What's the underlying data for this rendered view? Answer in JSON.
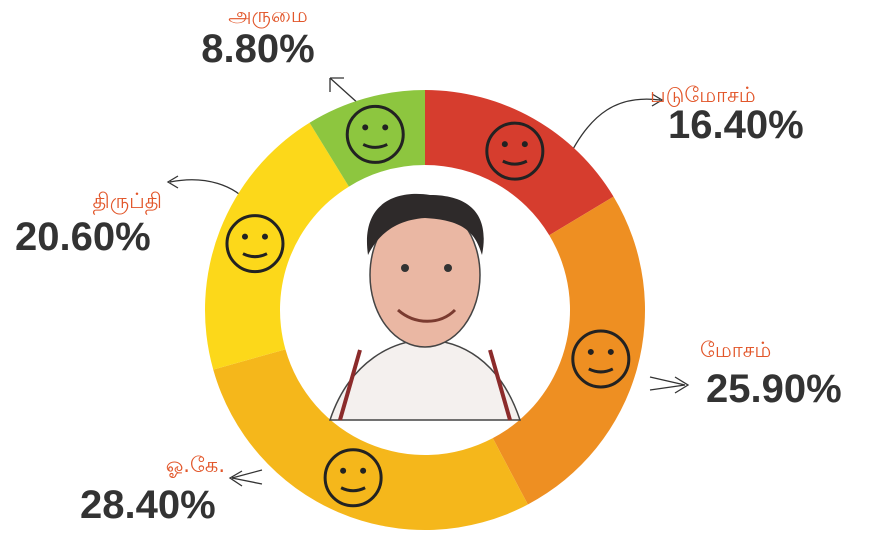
{
  "chart_data": {
    "type": "donut",
    "categories": [
      "படுமோசம்",
      "மோசம்",
      "ஓ.கே.",
      "திருப்தி",
      "அருமை"
    ],
    "values": [
      16.4,
      25.9,
      28.4,
      20.6,
      8.8
    ],
    "value_labels": [
      "16.40%",
      "25.90%",
      "28.40%",
      "20.60%",
      "8.80%"
    ],
    "colors": [
      "#d63d2e",
      "#ee8f22",
      "#f5b71b",
      "#fcd81a",
      "#8dc63f"
    ]
  }
}
